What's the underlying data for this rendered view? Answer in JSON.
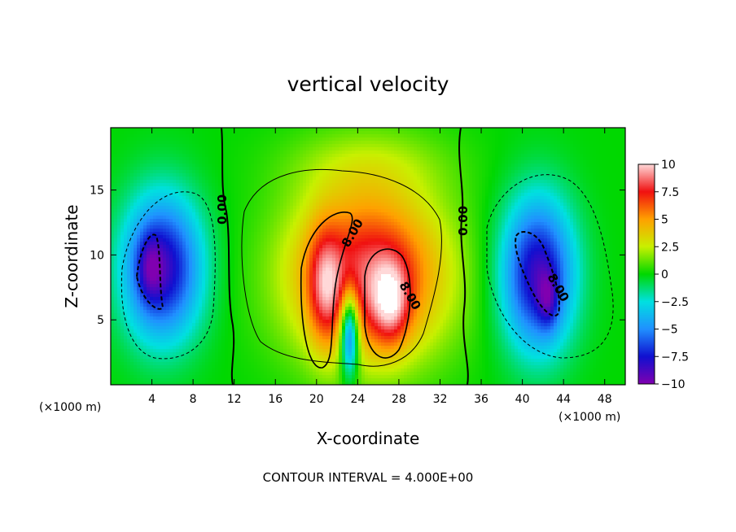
{
  "chart_data": {
    "type": "heatmap",
    "title": "vertical velocity",
    "xlabel": "X-coordinate",
    "ylabel": "Z-coordinate",
    "x_units_left": "(×1000 m)",
    "x_units_right": "(×1000 m)",
    "x_ticks": [
      "4",
      "8",
      "12",
      "16",
      "20",
      "24",
      "28",
      "32",
      "36",
      "40",
      "44",
      "48"
    ],
    "y_ticks": [
      "5",
      "10",
      "15"
    ],
    "xlim": [
      0,
      50
    ],
    "ylim": [
      0,
      19.8
    ],
    "colorbar": {
      "ticks": [
        "10",
        "7.5",
        "5",
        "2.5",
        "0",
        "−2.5",
        "−5",
        "−7.5",
        "−10"
      ],
      "range": [
        -10,
        10
      ]
    },
    "contour_labels": [
      "0.00",
      "8.00",
      "0.00",
      "8.00",
      "8.00"
    ],
    "contour_interval_text": "CONTOUR INTERVAL = 4.000E+00",
    "features": [
      {
        "kind": "updraft",
        "x": 25,
        "z": 8,
        "amp": 9
      },
      {
        "kind": "core",
        "x": 21,
        "z": 8,
        "amp": 11
      },
      {
        "kind": "core",
        "x": 27,
        "z": 6,
        "amp": 11
      },
      {
        "kind": "downdraft",
        "x": 5,
        "z": 9,
        "amp": -9
      },
      {
        "kind": "downdraft",
        "x": 42,
        "z": 8,
        "amp": -10
      }
    ]
  }
}
